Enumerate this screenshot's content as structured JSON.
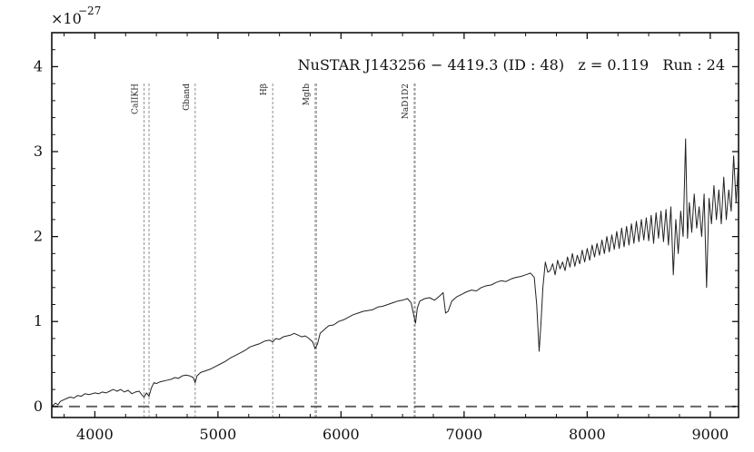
{
  "chart_data": {
    "type": "line",
    "title": "NuSTAR J143256 − 4419.3 (ID : 48)   z = 0.119   Run : 24",
    "xlabel": "",
    "ylabel": "",
    "y_multiplier_label": "×10",
    "y_multiplier_exponent": "−27",
    "xlim": [
      3650,
      9230
    ],
    "ylim": [
      -0.13,
      4.4
    ],
    "x_ticks": [
      4000,
      5000,
      6000,
      7000,
      8000,
      9000
    ],
    "y_ticks": [
      0,
      1,
      2,
      3,
      4
    ],
    "grid": false,
    "zero_line": {
      "y": 0,
      "style": "dashed",
      "color": "#666666"
    },
    "spectrum_color": "#222222",
    "line_marker_color": "#999999",
    "spectral_lines": [
      {
        "name": "CaIIKH",
        "x": [
          4400,
          4440
        ],
        "label": "CaIIKH"
      },
      {
        "name": "Gband",
        "x": [
          4815
        ],
        "label": "Gband"
      },
      {
        "name": "Hβ",
        "x": [
          5445
        ],
        "label": "Hβ"
      },
      {
        "name": "MgIb",
        "x": [
          5790,
          5800
        ],
        "label": "MgIb"
      },
      {
        "name": "NaD1D2",
        "x": [
          6595,
          6602
        ],
        "label": "NaD1D2"
      }
    ],
    "series": [
      {
        "values": [
          [
            3650,
            0.0
          ],
          [
            3680,
            0.04
          ],
          [
            3700,
            0.02
          ],
          [
            3720,
            0.06
          ],
          [
            3750,
            0.08
          ],
          [
            3780,
            0.1
          ],
          [
            3800,
            0.11
          ],
          [
            3830,
            0.1
          ],
          [
            3860,
            0.13
          ],
          [
            3890,
            0.12
          ],
          [
            3920,
            0.15
          ],
          [
            3950,
            0.14
          ],
          [
            3980,
            0.15
          ],
          [
            4000,
            0.16
          ],
          [
            4030,
            0.15
          ],
          [
            4060,
            0.17
          ],
          [
            4090,
            0.16
          ],
          [
            4120,
            0.18
          ],
          [
            4150,
            0.2
          ],
          [
            4180,
            0.18
          ],
          [
            4210,
            0.2
          ],
          [
            4240,
            0.17
          ],
          [
            4270,
            0.19
          ],
          [
            4300,
            0.15
          ],
          [
            4330,
            0.17
          ],
          [
            4360,
            0.18
          ],
          [
            4380,
            0.14
          ],
          [
            4400,
            0.11
          ],
          [
            4420,
            0.16
          ],
          [
            4440,
            0.12
          ],
          [
            4460,
            0.22
          ],
          [
            4480,
            0.28
          ],
          [
            4500,
            0.27
          ],
          [
            4530,
            0.29
          ],
          [
            4560,
            0.3
          ],
          [
            4590,
            0.31
          ],
          [
            4620,
            0.32
          ],
          [
            4650,
            0.34
          ],
          [
            4680,
            0.33
          ],
          [
            4710,
            0.36
          ],
          [
            4740,
            0.37
          ],
          [
            4770,
            0.36
          ],
          [
            4800,
            0.34
          ],
          [
            4815,
            0.28
          ],
          [
            4830,
            0.36
          ],
          [
            4860,
            0.4
          ],
          [
            4900,
            0.42
          ],
          [
            4940,
            0.44
          ],
          [
            4980,
            0.47
          ],
          [
            5020,
            0.5
          ],
          [
            5060,
            0.53
          ],
          [
            5100,
            0.57
          ],
          [
            5140,
            0.6
          ],
          [
            5180,
            0.63
          ],
          [
            5220,
            0.66
          ],
          [
            5260,
            0.7
          ],
          [
            5300,
            0.72
          ],
          [
            5340,
            0.74
          ],
          [
            5380,
            0.77
          ],
          [
            5420,
            0.78
          ],
          [
            5445,
            0.76
          ],
          [
            5470,
            0.8
          ],
          [
            5500,
            0.79
          ],
          [
            5530,
            0.82
          ],
          [
            5560,
            0.83
          ],
          [
            5590,
            0.84
          ],
          [
            5620,
            0.86
          ],
          [
            5650,
            0.84
          ],
          [
            5680,
            0.82
          ],
          [
            5710,
            0.83
          ],
          [
            5740,
            0.8
          ],
          [
            5770,
            0.76
          ],
          [
            5790,
            0.68
          ],
          [
            5810,
            0.74
          ],
          [
            5830,
            0.86
          ],
          [
            5860,
            0.9
          ],
          [
            5900,
            0.95
          ],
          [
            5940,
            0.96
          ],
          [
            5980,
            1.0
          ],
          [
            6020,
            1.02
          ],
          [
            6060,
            1.05
          ],
          [
            6100,
            1.08
          ],
          [
            6140,
            1.1
          ],
          [
            6180,
            1.12
          ],
          [
            6220,
            1.13
          ],
          [
            6260,
            1.14
          ],
          [
            6300,
            1.17
          ],
          [
            6340,
            1.18
          ],
          [
            6380,
            1.2
          ],
          [
            6420,
            1.22
          ],
          [
            6460,
            1.24
          ],
          [
            6500,
            1.25
          ],
          [
            6540,
            1.27
          ],
          [
            6570,
            1.22
          ],
          [
            6590,
            1.08
          ],
          [
            6605,
            0.98
          ],
          [
            6620,
            1.16
          ],
          [
            6640,
            1.24
          ],
          [
            6680,
            1.27
          ],
          [
            6720,
            1.28
          ],
          [
            6760,
            1.25
          ],
          [
            6800,
            1.3
          ],
          [
            6830,
            1.34
          ],
          [
            6850,
            1.1
          ],
          [
            6870,
            1.12
          ],
          [
            6900,
            1.24
          ],
          [
            6940,
            1.29
          ],
          [
            6980,
            1.32
          ],
          [
            7020,
            1.35
          ],
          [
            7060,
            1.37
          ],
          [
            7100,
            1.36
          ],
          [
            7140,
            1.4
          ],
          [
            7180,
            1.42
          ],
          [
            7220,
            1.43
          ],
          [
            7260,
            1.46
          ],
          [
            7300,
            1.48
          ],
          [
            7340,
            1.47
          ],
          [
            7380,
            1.5
          ],
          [
            7420,
            1.52
          ],
          [
            7460,
            1.53
          ],
          [
            7500,
            1.55
          ],
          [
            7540,
            1.57
          ],
          [
            7570,
            1.52
          ],
          [
            7590,
            1.2
          ],
          [
            7610,
            0.65
          ],
          [
            7625,
            0.98
          ],
          [
            7640,
            1.4
          ],
          [
            7660,
            1.7
          ],
          [
            7680,
            1.58
          ],
          [
            7700,
            1.6
          ],
          [
            7720,
            1.68
          ],
          [
            7740,
            1.55
          ],
          [
            7760,
            1.72
          ],
          [
            7780,
            1.62
          ],
          [
            7800,
            1.7
          ],
          [
            7820,
            1.6
          ],
          [
            7840,
            1.76
          ],
          [
            7860,
            1.64
          ],
          [
            7880,
            1.8
          ],
          [
            7900,
            1.65
          ],
          [
            7920,
            1.78
          ],
          [
            7940,
            1.68
          ],
          [
            7960,
            1.84
          ],
          [
            7980,
            1.7
          ],
          [
            8000,
            1.86
          ],
          [
            8020,
            1.72
          ],
          [
            8040,
            1.9
          ],
          [
            8060,
            1.76
          ],
          [
            8080,
            1.92
          ],
          [
            8100,
            1.78
          ],
          [
            8120,
            1.96
          ],
          [
            8140,
            1.8
          ],
          [
            8160,
            2.0
          ],
          [
            8180,
            1.82
          ],
          [
            8200,
            2.02
          ],
          [
            8220,
            1.85
          ],
          [
            8240,
            2.06
          ],
          [
            8260,
            1.86
          ],
          [
            8280,
            2.1
          ],
          [
            8300,
            1.88
          ],
          [
            8320,
            2.12
          ],
          [
            8340,
            1.9
          ],
          [
            8360,
            2.15
          ],
          [
            8380,
            1.92
          ],
          [
            8400,
            2.18
          ],
          [
            8420,
            1.94
          ],
          [
            8440,
            2.2
          ],
          [
            8460,
            1.96
          ],
          [
            8480,
            2.22
          ],
          [
            8500,
            1.95
          ],
          [
            8520,
            2.25
          ],
          [
            8540,
            1.92
          ],
          [
            8560,
            2.28
          ],
          [
            8580,
            1.98
          ],
          [
            8600,
            2.3
          ],
          [
            8620,
            1.94
          ],
          [
            8640,
            2.32
          ],
          [
            8660,
            1.9
          ],
          [
            8680,
            2.35
          ],
          [
            8700,
            1.55
          ],
          [
            8720,
            2.2
          ],
          [
            8740,
            1.8
          ],
          [
            8760,
            2.3
          ],
          [
            8780,
            2.0
          ],
          [
            8800,
            3.15
          ],
          [
            8815,
            1.98
          ],
          [
            8830,
            2.4
          ],
          [
            8850,
            2.05
          ],
          [
            8870,
            2.5
          ],
          [
            8890,
            2.1
          ],
          [
            8910,
            2.35
          ],
          [
            8930,
            2.0
          ],
          [
            8950,
            2.5
          ],
          [
            8970,
            1.4
          ],
          [
            8990,
            2.45
          ],
          [
            9010,
            2.15
          ],
          [
            9030,
            2.6
          ],
          [
            9050,
            2.2
          ],
          [
            9070,
            2.55
          ],
          [
            9090,
            2.15
          ],
          [
            9110,
            2.7
          ],
          [
            9130,
            2.2
          ],
          [
            9150,
            2.55
          ],
          [
            9170,
            2.3
          ],
          [
            9190,
            2.95
          ],
          [
            9210,
            2.4
          ],
          [
            9230,
            2.9
          ]
        ]
      }
    ]
  }
}
